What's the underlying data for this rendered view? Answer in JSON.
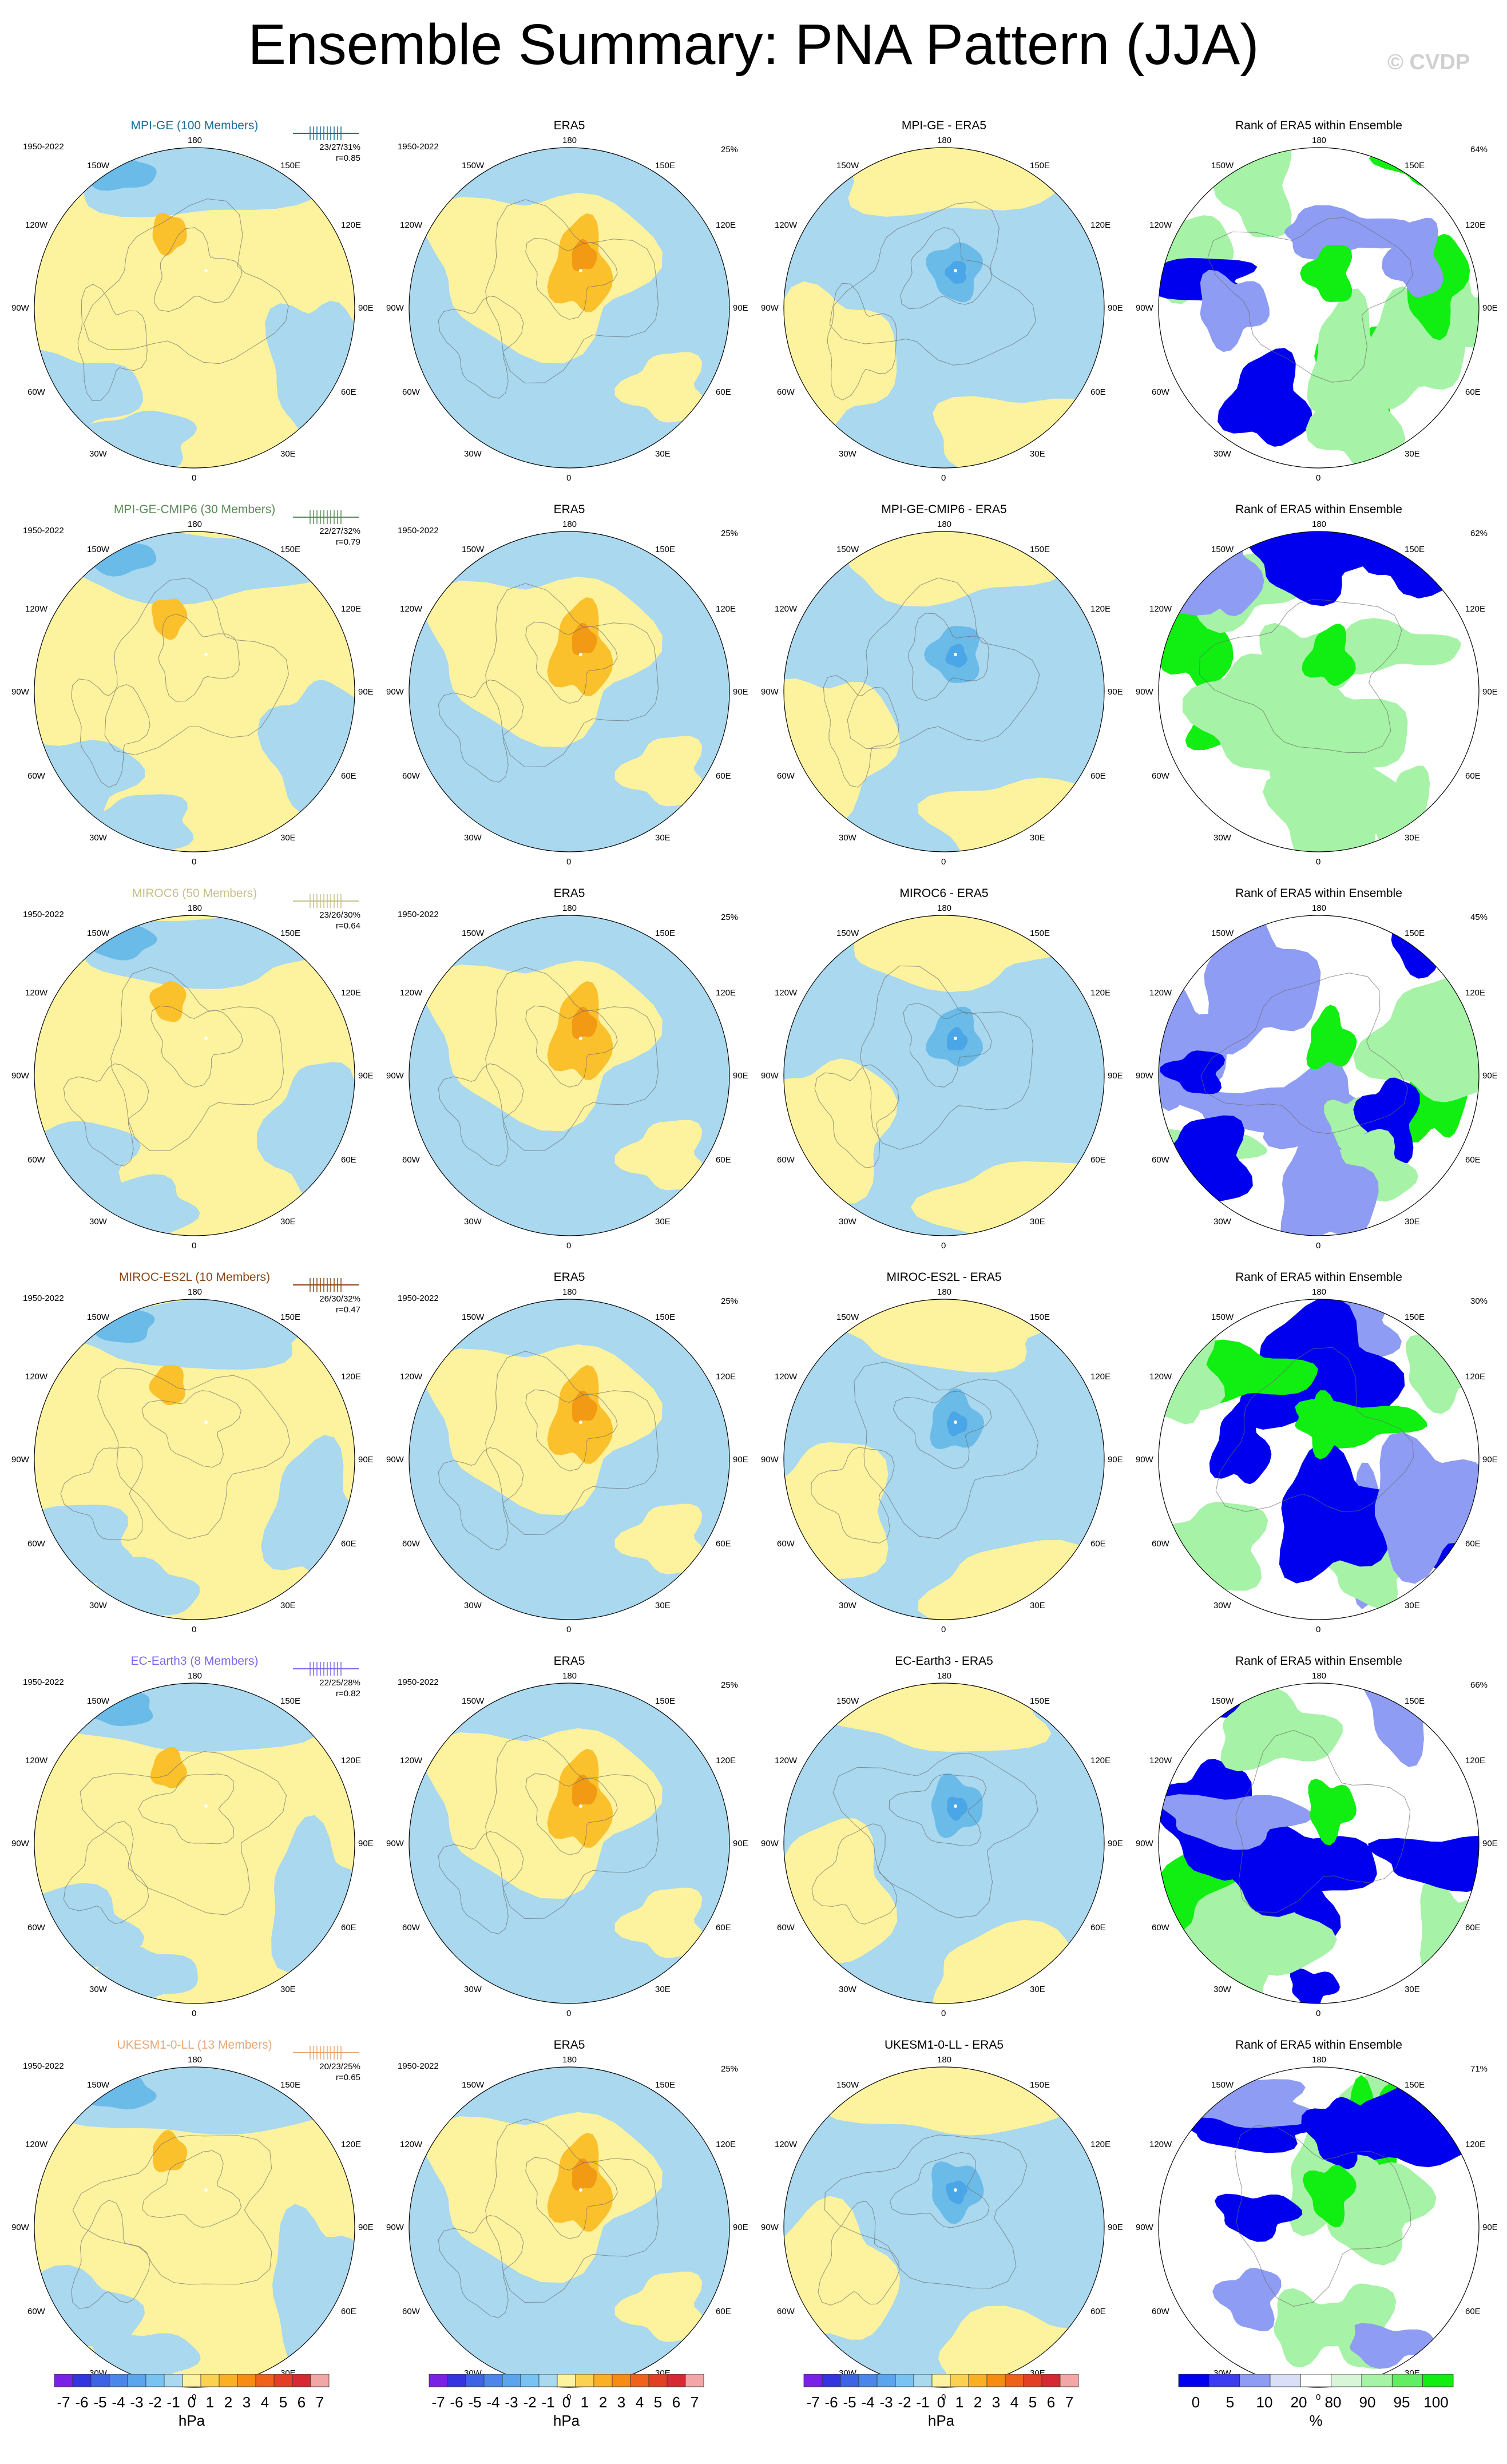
{
  "title": "Ensemble Summary: PNA Pattern (JJA)",
  "copyright": "© CVDP",
  "period": "1950-2022",
  "era5_label": "ERA5",
  "era5_pct": "25%",
  "rank_title": "Rank of ERA5 within Ensemble",
  "colors": {
    "ocean_blue": "#a9d8ef",
    "land_yellow": "#fdf29e",
    "neg_blue": "#6bbbe9",
    "neg_blue_strong": "#4aa6e6",
    "pos_orange": "#fbc12c",
    "pos_orange_strong": "#f29a14",
    "rank_blue": "#0000ee",
    "rank_lightblue": "#8f9cf4",
    "rank_green": "#11ee11",
    "rank_lightgreen": "#a6f2a6"
  },
  "map_labels": {
    "top": "180",
    "bottom": "0",
    "left": "90W",
    "right": "90E",
    "upper_left_1": "150W",
    "upper_left_2": "120W",
    "upper_right_1": "150E",
    "upper_right_2": "120E",
    "lower_left_1": "60W",
    "lower_left_2": "30W",
    "lower_right_1": "60E",
    "lower_right_2": "30E"
  },
  "rows": [
    {
      "model_title": "MPI-GE (100 Members)",
      "model_color": "#1a6f98",
      "stats_1": "23/27/31%",
      "stats_2": "r=0.85",
      "diff_title": "MPI-GE - ERA5",
      "rank_pct": "64%"
    },
    {
      "model_title": "MPI-GE-CMIP6 (30 Members)",
      "model_color": "#5a8a55",
      "stats_1": "22/27/32%",
      "stats_2": "r=0.79",
      "diff_title": "MPI-GE-CMIP6 - ERA5",
      "rank_pct": "62%"
    },
    {
      "model_title": "MIROC6 (50 Members)",
      "model_color": "#c8c08a",
      "stats_1": "23/26/30%",
      "stats_2": "r=0.64",
      "diff_title": "MIROC6 - ERA5",
      "rank_pct": "45%"
    },
    {
      "model_title": "MIROC-ES2L (10 Members)",
      "model_color": "#8b4513",
      "stats_1": "26/30/32%",
      "stats_2": "r=0.47",
      "diff_title": "MIROC-ES2L - ERA5",
      "rank_pct": "30%"
    },
    {
      "model_title": "EC-Earth3 (8 Members)",
      "model_color": "#7b68ee",
      "stats_1": "22/25/28%",
      "stats_2": "r=0.82",
      "diff_title": "EC-Earth3 - ERA5",
      "rank_pct": "66%"
    },
    {
      "model_title": "UKESM1-0-LL (13 Members)",
      "model_color": "#e8a878",
      "stats_1": "20/23/25%",
      "stats_2": "r=0.65",
      "diff_title": "UKESM1-0-LL - ERA5",
      "rank_pct": "71%"
    }
  ],
  "colorbar_hpa": {
    "labels": [
      "-7",
      "-6",
      "-5",
      "-4",
      "-3",
      "-2",
      "-1",
      "0",
      "1",
      "2",
      "3",
      "4",
      "5",
      "6",
      "7"
    ],
    "unit": "hPa",
    "colors": [
      "#7a21e8",
      "#3434e0",
      "#3f63e6",
      "#4c86ea",
      "#5aa5ee",
      "#78c3f2",
      "#a9d8ef",
      "#fdf29e",
      "#fbd150",
      "#fbb024",
      "#f88c13",
      "#f0611a",
      "#e33f24",
      "#d82833",
      "#f2a6a6"
    ]
  },
  "colorbar_rank": {
    "labels": [
      "0",
      "5",
      "10",
      "20",
      "80",
      "90",
      "95",
      "100"
    ],
    "unit": "%",
    "colors": [
      "#0000ee",
      "#3c3cf0",
      "#8f9cf4",
      "#dadff8",
      "#ffffff",
      "#d8f5d8",
      "#a6f2a6",
      "#62ee62",
      "#11ee11"
    ]
  }
}
